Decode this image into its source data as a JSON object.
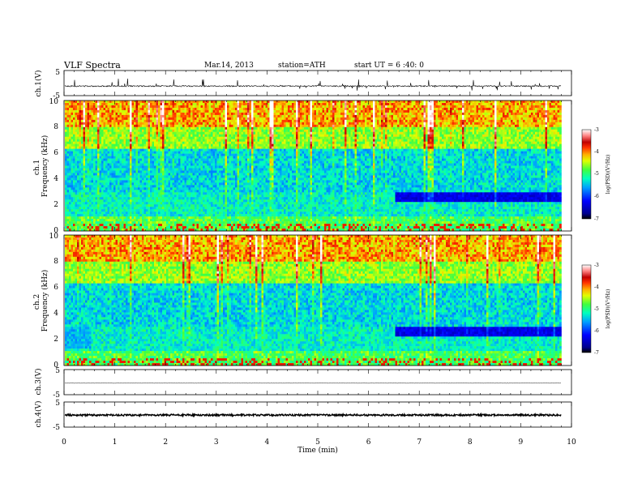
{
  "header": {
    "title": "VLF  Spectra",
    "date": "Mar.14, 2013",
    "station": "station=ATH",
    "start": "start  UT  =   6  :40: 0"
  },
  "colors": {
    "axis": "#000000",
    "trace": "#000000"
  },
  "chart_data": [
    {
      "type": "line",
      "name": "ch1-waveform",
      "ylabel": "ch.1(V)",
      "xlim": [
        0,
        10
      ],
      "ylim": [
        -5,
        5
      ],
      "yticks": [
        "5",
        "-5"
      ],
      "baseline": -1.2,
      "noise": 0.25,
      "spike_amp": 2.4,
      "data_end": 9.8
    },
    {
      "type": "heatmap",
      "name": "ch1-spectrogram",
      "ylabel": "ch.1\nFrequency (kHz)",
      "xlim": [
        0,
        10
      ],
      "ylim": [
        0,
        10
      ],
      "yticks": [
        "0",
        "2",
        "4",
        "6",
        "8",
        "10"
      ],
      "data_end": 9.8,
      "colorbar": {
        "label": "log(PSD)(V²/Hz)",
        "range": [
          -7,
          -3
        ],
        "ticks": [
          "-3",
          "-4",
          "-5",
          "-6",
          "-7"
        ]
      }
    },
    {
      "type": "heatmap",
      "name": "ch2-spectrogram",
      "ylabel": "ch.2\nFrequency (kHz)",
      "xlim": [
        0,
        10
      ],
      "ylim": [
        0,
        10
      ],
      "yticks": [
        "0",
        "2",
        "4",
        "6",
        "8",
        "10"
      ],
      "data_end": 9.8,
      "colorbar": {
        "label": "log(PSD)(V²/Hz)",
        "range": [
          -7,
          -3
        ],
        "ticks": [
          "-3",
          "-4",
          "-5",
          "-6",
          "-7"
        ]
      }
    },
    {
      "type": "line",
      "name": "ch3-waveform",
      "ylabel": "ch.3(V)",
      "xlim": [
        0,
        10
      ],
      "ylim": [
        -5,
        5
      ],
      "yticks": [
        "5",
        "-5"
      ],
      "baseline": -0.4,
      "noise": 0.05,
      "spike_amp": 0,
      "data_end": 9.8
    },
    {
      "type": "line",
      "name": "ch4-waveform",
      "ylabel": "ch.4(V)",
      "xlim": [
        0,
        10
      ],
      "ylim": [
        -5,
        5
      ],
      "yticks": [
        "5",
        "-5"
      ],
      "baseline": -0.2,
      "noise": 0.35,
      "spike_amp": 0,
      "data_end": 9.8
    }
  ],
  "xaxis": {
    "label": "Time (min)",
    "ticks": [
      "0",
      "1",
      "2",
      "3",
      "4",
      "5",
      "6",
      "7",
      "8",
      "9",
      "10"
    ]
  }
}
